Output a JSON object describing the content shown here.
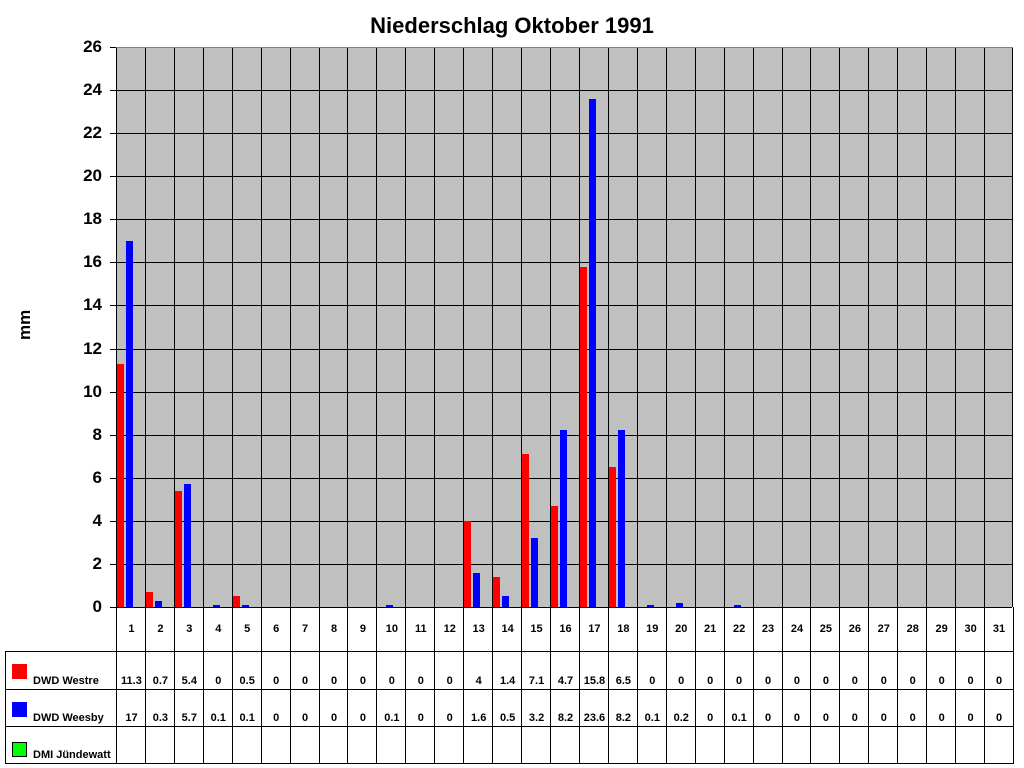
{
  "chart_data": {
    "type": "bar",
    "title": "Niederschlag Oktober 1991",
    "xlabel": "",
    "ylabel": "mm",
    "ylim": [
      0,
      26
    ],
    "yticks": [
      0,
      2,
      4,
      6,
      8,
      10,
      12,
      14,
      16,
      18,
      20,
      22,
      24,
      26
    ],
    "grid": true,
    "legend_position": "data-table-left",
    "categories": [
      "1",
      "2",
      "3",
      "4",
      "5",
      "6",
      "7",
      "8",
      "9",
      "10",
      "11",
      "12",
      "13",
      "14",
      "15",
      "16",
      "17",
      "18",
      "19",
      "20",
      "21",
      "22",
      "23",
      "24",
      "25",
      "26",
      "27",
      "28",
      "29",
      "30",
      "31"
    ],
    "series": [
      {
        "name": "DWD Westre",
        "color": "#ff0000",
        "values": [
          11.3,
          0.7,
          5.4,
          0,
          0.5,
          0,
          0,
          0,
          0,
          0,
          0,
          0,
          4,
          1.4,
          7.1,
          4.7,
          15.8,
          6.5,
          0,
          0,
          0,
          0,
          0,
          0,
          0,
          0,
          0,
          0,
          0,
          0,
          0
        ]
      },
      {
        "name": "DWD Weesby",
        "color": "#0000ff",
        "values": [
          17,
          0.3,
          5.7,
          0.1,
          0.1,
          0,
          0,
          0,
          0,
          0.1,
          0,
          0,
          1.6,
          0.5,
          3.2,
          8.2,
          23.6,
          8.2,
          0.1,
          0.2,
          0,
          0.1,
          0,
          0,
          0,
          0,
          0,
          0,
          0,
          0,
          0
        ]
      },
      {
        "name": "DMI Jündewatt",
        "color": "#00ff00",
        "values": []
      }
    ]
  },
  "colors": {
    "plot_bg": "#c0c0c0",
    "grid": "#000000"
  }
}
